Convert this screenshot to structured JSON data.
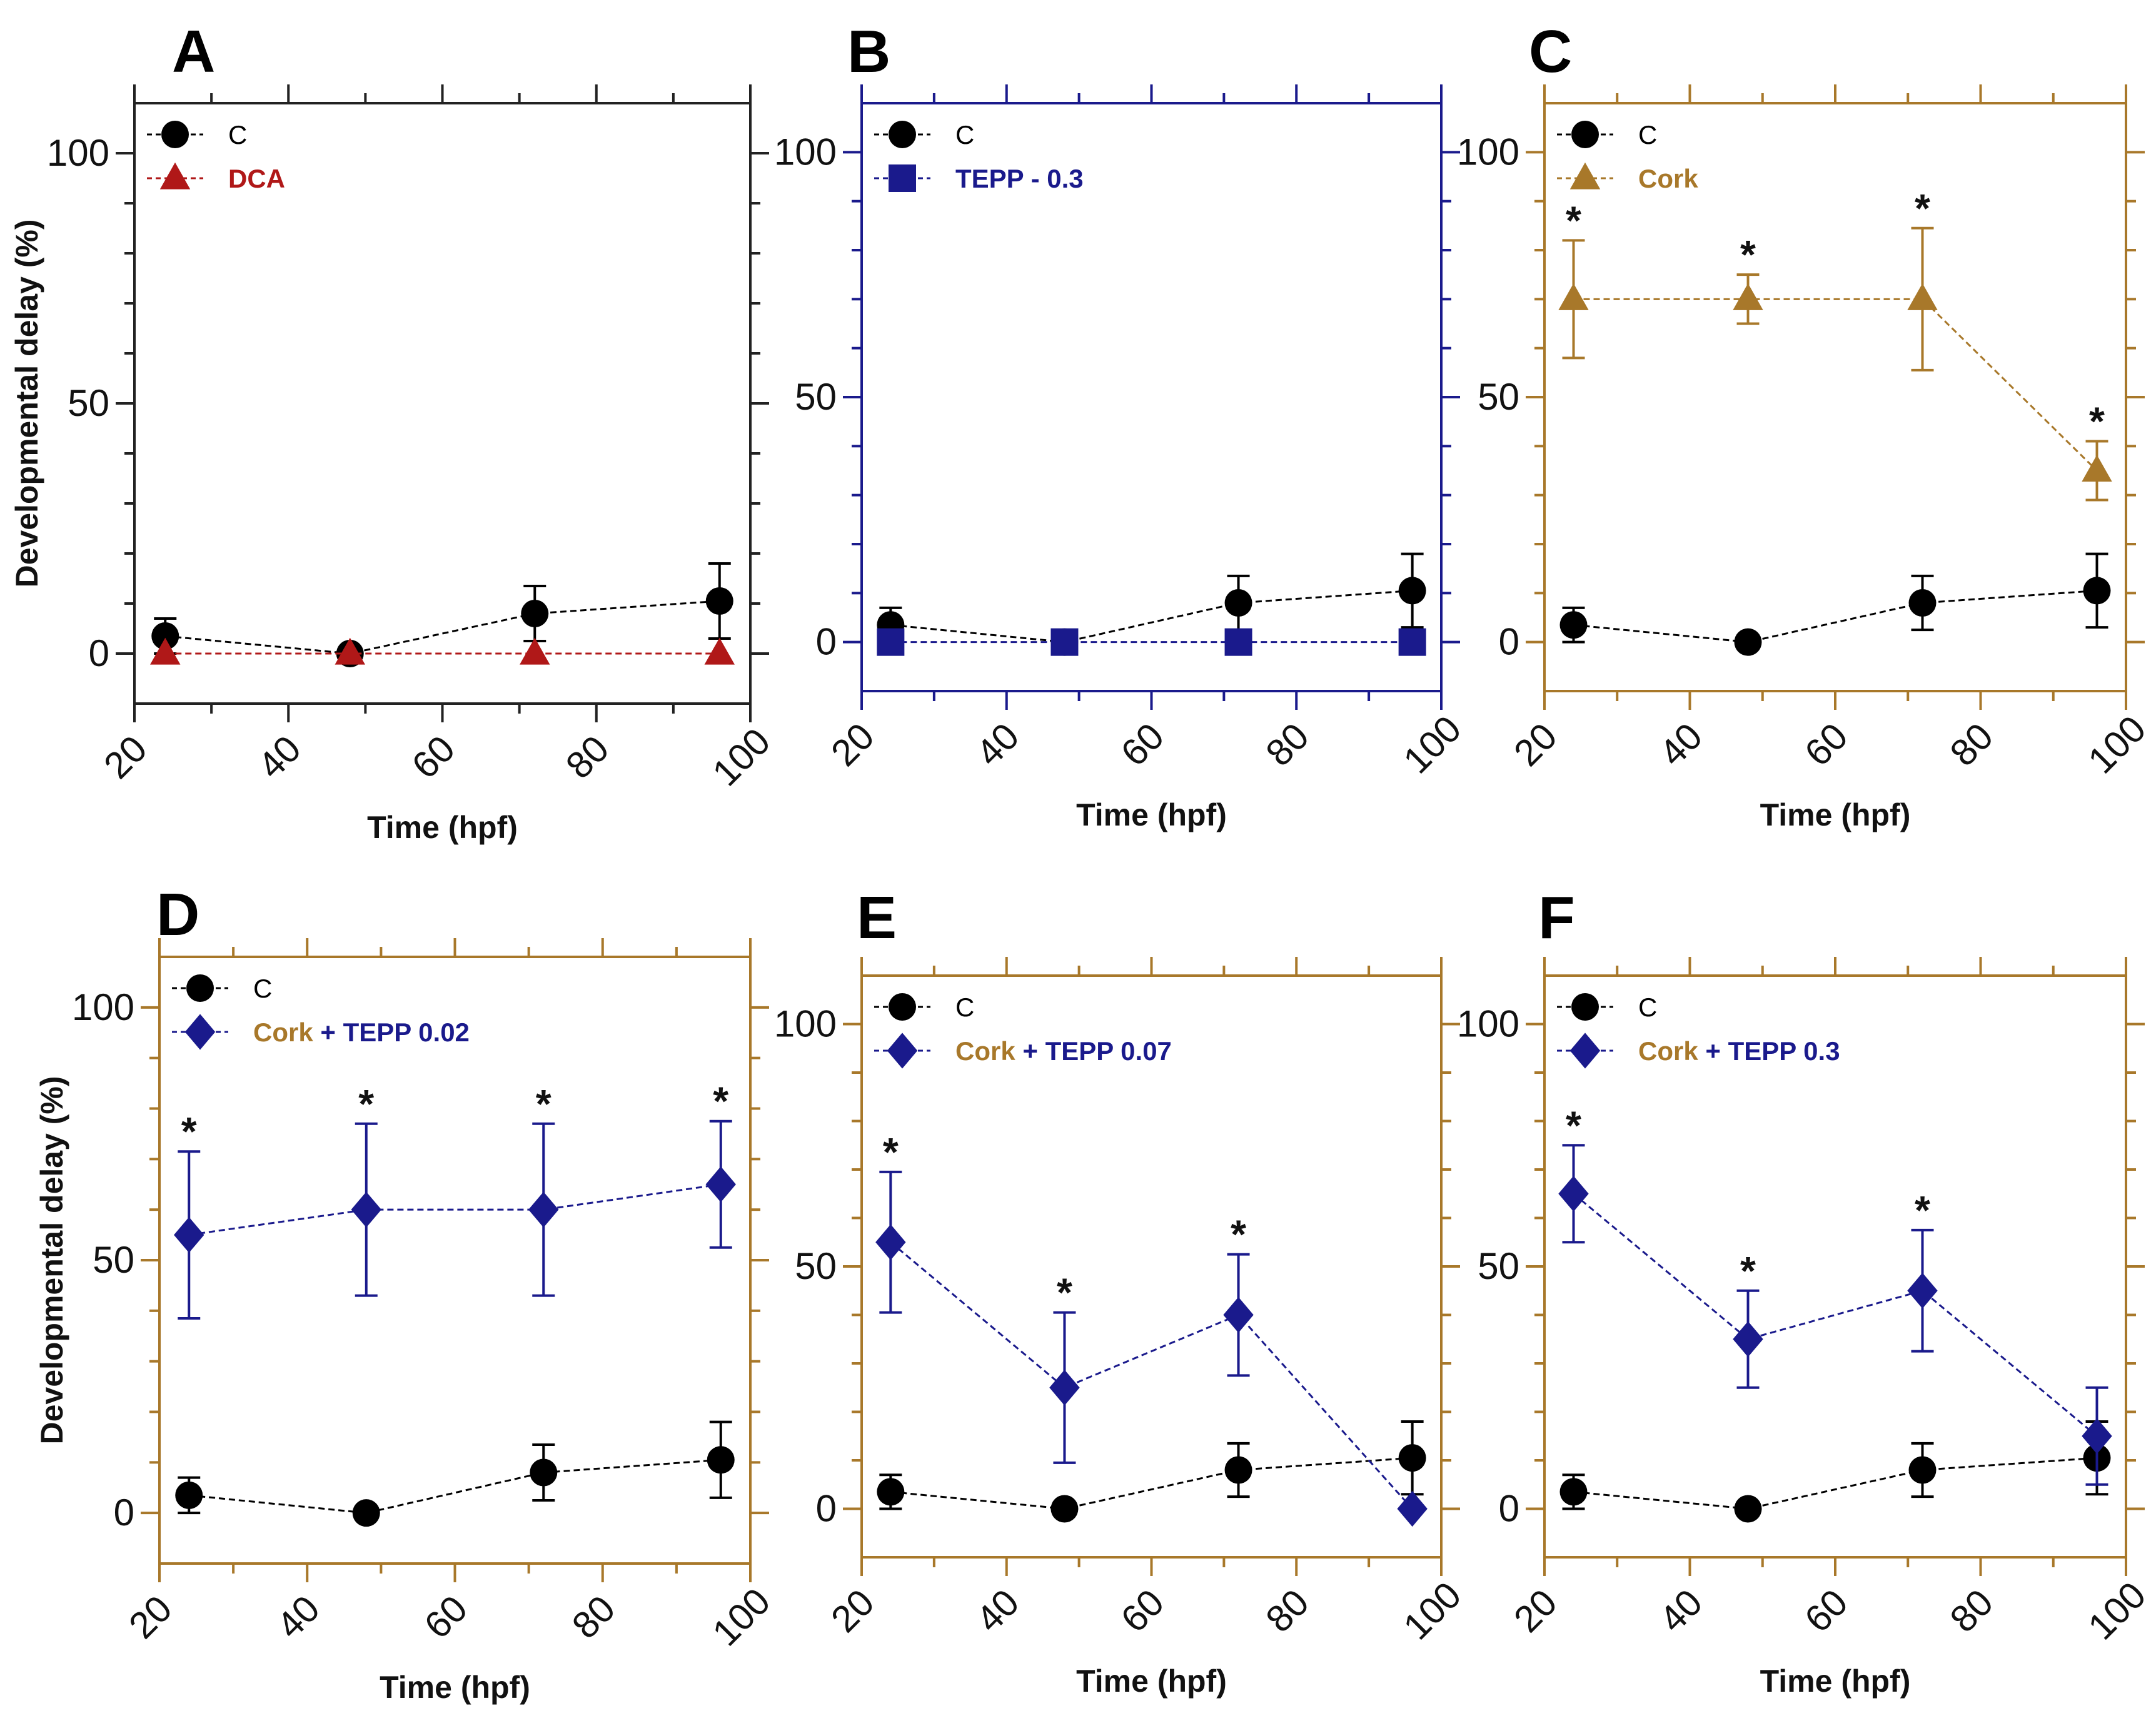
{
  "figure": {
    "ylabel": "Developmental delay (%)",
    "xlabel": "Time (hpf)"
  },
  "colors": {
    "control": "#000000",
    "dca": "#b01818",
    "tepp": "#1a1a8c",
    "cork": "#a8782a",
    "black_frame": "#222222"
  },
  "chart_data": [
    {
      "id": "A",
      "type": "line",
      "frame_color": "#222222",
      "xlabel": "Time (hpf)",
      "ylabel": "Developmental delay (%)",
      "xlim": [
        20,
        100
      ],
      "ylim": [
        -10,
        110
      ],
      "xticks": [
        20,
        40,
        60,
        80,
        100
      ],
      "yticks": [
        0,
        50,
        100
      ],
      "series": [
        {
          "name": "C",
          "label_parts": [
            {
              "text": "C",
              "color": "#000000",
              "bold": false
            }
          ],
          "marker": "circle",
          "color": "#000000",
          "x": [
            24,
            48,
            72,
            96
          ],
          "y": [
            3.5,
            0,
            8,
            10.5
          ],
          "err": [
            3.5,
            0,
            5.5,
            7.5
          ],
          "stars": [
            false,
            false,
            false,
            false
          ]
        },
        {
          "name": "DCA",
          "label_parts": [
            {
              "text": "DCA",
              "color": "#b01818",
              "bold": true
            }
          ],
          "marker": "triangle",
          "color": "#b01818",
          "x": [
            24,
            48,
            72,
            96
          ],
          "y": [
            0,
            0,
            0,
            0
          ],
          "err": [
            0,
            0,
            0,
            0
          ],
          "stars": [
            false,
            false,
            false,
            false
          ]
        }
      ]
    },
    {
      "id": "B",
      "type": "line",
      "frame_color": "#1a1a8c",
      "xlabel": "Time (hpf)",
      "ylabel": "",
      "xlim": [
        20,
        100
      ],
      "ylim": [
        -10,
        110
      ],
      "xticks": [
        20,
        40,
        60,
        80,
        100
      ],
      "yticks": [
        0,
        50,
        100
      ],
      "series": [
        {
          "name": "C",
          "label_parts": [
            {
              "text": "C",
              "color": "#000000",
              "bold": false
            }
          ],
          "marker": "circle",
          "color": "#000000",
          "x": [
            24,
            48,
            72,
            96
          ],
          "y": [
            3.5,
            0,
            8,
            10.5
          ],
          "err": [
            3.5,
            0,
            5.5,
            7.5
          ],
          "stars": [
            false,
            false,
            false,
            false
          ]
        },
        {
          "name": "TEPP - 0.3",
          "label_parts": [
            {
              "text": "TEPP - 0.3",
              "color": "#1a1a8c",
              "bold": true
            }
          ],
          "marker": "square",
          "color": "#1a1a8c",
          "x": [
            24,
            48,
            72,
            96
          ],
          "y": [
            0,
            0,
            0,
            0
          ],
          "err": [
            0,
            0,
            0,
            0
          ],
          "stars": [
            false,
            false,
            false,
            false
          ]
        }
      ]
    },
    {
      "id": "C",
      "type": "line",
      "frame_color": "#a8782a",
      "xlabel": "Time (hpf)",
      "ylabel": "",
      "xlim": [
        20,
        100
      ],
      "ylim": [
        -10,
        110
      ],
      "xticks": [
        20,
        40,
        60,
        80,
        100
      ],
      "yticks": [
        0,
        50,
        100
      ],
      "series": [
        {
          "name": "C",
          "label_parts": [
            {
              "text": "C",
              "color": "#000000",
              "bold": false
            }
          ],
          "marker": "circle",
          "color": "#000000",
          "x": [
            24,
            48,
            72,
            96
          ],
          "y": [
            3.5,
            0,
            8,
            10.5
          ],
          "err": [
            3.5,
            0,
            5.5,
            7.5
          ],
          "stars": [
            false,
            false,
            false,
            false
          ]
        },
        {
          "name": "Cork",
          "label_parts": [
            {
              "text": "Cork",
              "color": "#a8782a",
              "bold": true
            }
          ],
          "marker": "triangle",
          "color": "#a8782a",
          "x": [
            24,
            48,
            72,
            96
          ],
          "y": [
            70,
            70,
            70,
            35
          ],
          "err": [
            12,
            5,
            14.5,
            6
          ],
          "stars": [
            true,
            true,
            true,
            true
          ]
        }
      ]
    },
    {
      "id": "D",
      "type": "line",
      "frame_color": "#a8782a",
      "xlabel": "Time (hpf)",
      "ylabel": "Developmental delay (%)",
      "xlim": [
        20,
        100
      ],
      "ylim": [
        -10,
        110
      ],
      "xticks": [
        20,
        40,
        60,
        80,
        100
      ],
      "yticks": [
        0,
        50,
        100
      ],
      "series": [
        {
          "name": "C",
          "label_parts": [
            {
              "text": "C",
              "color": "#000000",
              "bold": false
            }
          ],
          "marker": "circle",
          "color": "#000000",
          "x": [
            24,
            48,
            72,
            96
          ],
          "y": [
            3.5,
            0,
            8,
            10.5
          ],
          "err": [
            3.5,
            0,
            5.5,
            7.5
          ],
          "stars": [
            false,
            false,
            false,
            false
          ]
        },
        {
          "name": "Cork + TEPP 0.02",
          "label_parts": [
            {
              "text": "Cork",
              "color": "#a8782a",
              "bold": true
            },
            {
              "text": " + TEPP 0.02",
              "color": "#1a1a8c",
              "bold": true
            }
          ],
          "marker": "diamond",
          "color": "#1a1a8c",
          "x": [
            24,
            48,
            72,
            96
          ],
          "y": [
            55,
            60,
            60,
            65
          ],
          "err": [
            16.5,
            17,
            17,
            12.5
          ],
          "stars": [
            true,
            true,
            true,
            true
          ]
        }
      ]
    },
    {
      "id": "E",
      "type": "line",
      "frame_color": "#a8782a",
      "xlabel": "Time (hpf)",
      "ylabel": "",
      "xlim": [
        20,
        100
      ],
      "ylim": [
        -10,
        110
      ],
      "xticks": [
        20,
        40,
        60,
        80,
        100
      ],
      "yticks": [
        0,
        50,
        100
      ],
      "series": [
        {
          "name": "C",
          "label_parts": [
            {
              "text": "C",
              "color": "#000000",
              "bold": false
            }
          ],
          "marker": "circle",
          "color": "#000000",
          "x": [
            24,
            48,
            72,
            96
          ],
          "y": [
            3.5,
            0,
            8,
            10.5
          ],
          "err": [
            3.5,
            0,
            5.5,
            7.5
          ],
          "stars": [
            false,
            false,
            false,
            false
          ]
        },
        {
          "name": "Cork + TEPP 0.07",
          "label_parts": [
            {
              "text": "Cork",
              "color": "#a8782a",
              "bold": true
            },
            {
              "text": " + TEPP 0.07",
              "color": "#1a1a8c",
              "bold": true
            }
          ],
          "marker": "diamond",
          "color": "#1a1a8c",
          "x": [
            24,
            48,
            72,
            96
          ],
          "y": [
            55,
            25,
            40,
            0
          ],
          "err": [
            14.5,
            15.5,
            12.5,
            0
          ],
          "stars": [
            true,
            true,
            true,
            false
          ]
        }
      ]
    },
    {
      "id": "F",
      "type": "line",
      "frame_color": "#a8782a",
      "xlabel": "Time (hpf)",
      "ylabel": "",
      "xlim": [
        20,
        100
      ],
      "ylim": [
        -10,
        110
      ],
      "xticks": [
        20,
        40,
        60,
        80,
        100
      ],
      "yticks": [
        0,
        50,
        100
      ],
      "series": [
        {
          "name": "C",
          "label_parts": [
            {
              "text": "C",
              "color": "#000000",
              "bold": false
            }
          ],
          "marker": "circle",
          "color": "#000000",
          "x": [
            24,
            48,
            72,
            96
          ],
          "y": [
            3.5,
            0,
            8,
            10.5
          ],
          "err": [
            3.5,
            0,
            5.5,
            7.5
          ],
          "stars": [
            false,
            false,
            false,
            false
          ]
        },
        {
          "name": "Cork + TEPP 0.3",
          "label_parts": [
            {
              "text": "Cork",
              "color": "#a8782a",
              "bold": true
            },
            {
              "text": " + TEPP 0.3",
              "color": "#1a1a8c",
              "bold": true
            }
          ],
          "marker": "diamond",
          "color": "#1a1a8c",
          "x": [
            24,
            48,
            72,
            96
          ],
          "y": [
            65,
            35,
            45,
            15
          ],
          "err": [
            10,
            10,
            12.5,
            10
          ],
          "stars": [
            true,
            true,
            true,
            false
          ]
        }
      ]
    }
  ]
}
